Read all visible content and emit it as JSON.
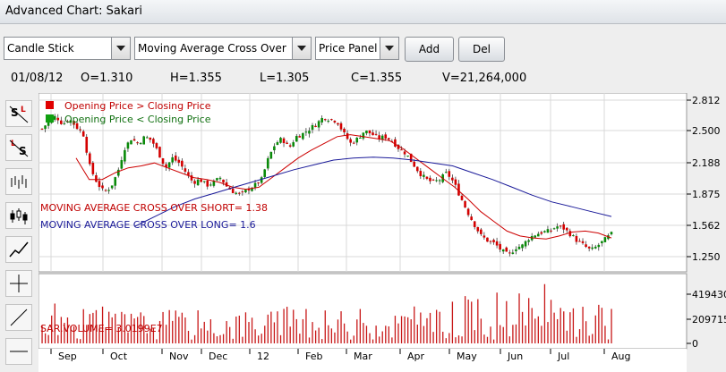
{
  "window": {
    "title": "Advanced Chart: Sakari"
  },
  "toolbar": {
    "chart_type": "Candle Stick",
    "indicator": "Moving Average Cross Over",
    "panel": "Price Panel",
    "add_label": "Add",
    "del_label": "Del"
  },
  "ohlc": {
    "date": "01/08/12",
    "open": "O=1.310",
    "high": "H=1.355",
    "low": "L=1.305",
    "close": "C=1.355",
    "volume": "V=21,264,000"
  },
  "sidebar_tools": [
    "set-s-l-icon",
    "set-l-s-icon",
    "bar-chart-icon",
    "candle-chart-icon",
    "line-chart-icon",
    "crosshair-icon",
    "trend-line-icon",
    "horizontal-line-icon"
  ],
  "chart_data": {
    "type": "line",
    "legend": [
      "Opening Price > Closing Price",
      "Opening Price < Closing Price"
    ],
    "annotations": [
      "MOVING AVERAGE CROSS OVER SHORT= 1.38",
      "MOVING AVERAGE CROSS OVER LONG= 1.6",
      "SAR.VOLUME= 3.0199E7"
    ],
    "price_ticks": [
      "2.812",
      "2.500",
      "2.188",
      "1.875",
      "1.562",
      "1.250"
    ],
    "volume_ticks": [
      "419430",
      "209715",
      "0"
    ],
    "x_ticks": [
      "Sep",
      "Oct",
      "Nov",
      "Dec",
      "12",
      "Feb",
      "Mar",
      "Apr",
      "May",
      "Jun",
      "Jul",
      "Aug"
    ],
    "ylim": [
      1.05,
      2.85
    ],
    "close_profile": [
      2.5,
      2.58,
      2.63,
      2.55,
      2.6,
      2.52,
      2.45,
      2.1,
      1.95,
      1.85,
      1.9,
      2.05,
      2.3,
      2.4,
      2.35,
      2.42,
      2.38,
      2.25,
      2.1,
      2.2,
      2.15,
      2.05,
      1.95,
      1.98,
      1.92,
      1.95,
      2.0,
      1.9,
      1.85,
      1.82,
      1.88,
      1.92,
      1.98,
      2.2,
      2.35,
      2.4,
      2.3,
      2.42,
      2.45,
      2.5,
      2.55,
      2.62,
      2.6,
      2.58,
      2.45,
      2.35,
      2.4,
      2.48,
      2.45,
      2.4,
      2.42,
      2.38,
      2.3,
      2.25,
      2.15,
      2.05,
      1.98,
      1.95,
      1.98,
      2.05,
      1.95,
      1.8,
      1.65,
      1.52,
      1.4,
      1.35,
      1.32,
      1.25,
      1.2,
      1.28,
      1.3,
      1.38,
      1.42,
      1.44,
      1.45,
      1.5,
      1.48,
      1.42,
      1.35,
      1.3,
      1.25,
      1.3,
      1.36,
      1.42
    ],
    "ma_short_profile": [
      2.2,
      1.98,
      1.98,
      2.05,
      2.1,
      2.12,
      2.15,
      2.1,
      2.05,
      2.0,
      1.98,
      1.95,
      1.9,
      1.88,
      1.9,
      2.0,
      2.1,
      2.2,
      2.28,
      2.35,
      2.42,
      2.44,
      2.42,
      2.4,
      2.38,
      2.3,
      2.2,
      2.1,
      2.0,
      1.9,
      1.78,
      1.65,
      1.55,
      1.45,
      1.4,
      1.38,
      1.37,
      1.4,
      1.44,
      1.45,
      1.43,
      1.38
    ],
    "ma_long_profile": [
      1.5,
      1.6,
      1.7,
      1.78,
      1.84,
      1.9,
      1.96,
      2.02,
      2.08,
      2.13,
      2.18,
      2.2,
      2.21,
      2.2,
      2.18,
      2.15,
      2.12,
      2.05,
      1.98,
      1.9,
      1.82,
      1.75,
      1.7,
      1.65,
      1.6
    ]
  }
}
